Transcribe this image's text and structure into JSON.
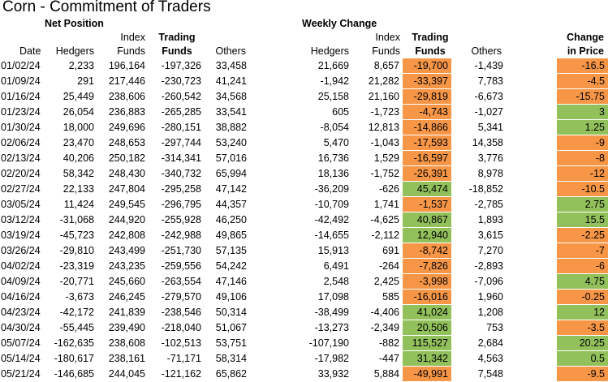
{
  "title": "Corn - Commitment of Traders",
  "sections": {
    "net_position": "Net Position",
    "weekly_change": "Weekly Change"
  },
  "headers": {
    "date": "Date",
    "net_hedgers": "Hedgers",
    "net_index": [
      "Index",
      "Funds"
    ],
    "net_trading": [
      "Trading",
      "Funds"
    ],
    "net_others": "Others",
    "chg_hedgers": "Hedgers",
    "chg_index": [
      "Index",
      "Funds"
    ],
    "chg_trading": [
      "Trading",
      "Funds"
    ],
    "chg_others": "Others",
    "price": [
      "Change",
      "in Price"
    ]
  },
  "colors": {
    "negative": "#f79646",
    "positive": "#92c15b"
  },
  "rows": [
    {
      "date": "01/02/24",
      "nh": "2,233",
      "ni": "196,164",
      "nt": "-197,326",
      "no": "33,458",
      "ch": "21,669",
      "ci": "8,657",
      "ct": "-19,700",
      "co": "-1,439",
      "p": "-16.5",
      "tc": "orange",
      "pc": "orange"
    },
    {
      "date": "01/09/24",
      "nh": "291",
      "ni": "217,446",
      "nt": "-230,723",
      "no": "41,241",
      "ch": "-1,942",
      "ci": "21,282",
      "ct": "-33,397",
      "co": "7,783",
      "p": "-4.5",
      "tc": "orange",
      "pc": "orange"
    },
    {
      "date": "01/16/24",
      "nh": "25,449",
      "ni": "238,606",
      "nt": "-260,542",
      "no": "34,568",
      "ch": "25,158",
      "ci": "21,160",
      "ct": "-29,819",
      "co": "-6,673",
      "p": "-15.75",
      "tc": "orange",
      "pc": "orange"
    },
    {
      "date": "01/23/24",
      "nh": "26,054",
      "ni": "236,883",
      "nt": "-265,285",
      "no": "33,541",
      "ch": "605",
      "ci": "-1,723",
      "ct": "-4,743",
      "co": "-1,027",
      "p": "3",
      "tc": "orange",
      "pc": "green"
    },
    {
      "date": "01/30/24",
      "nh": "18,000",
      "ni": "249,696",
      "nt": "-280,151",
      "no": "38,882",
      "ch": "-8,054",
      "ci": "12,813",
      "ct": "-14,866",
      "co": "5,341",
      "p": "1.25",
      "tc": "orange",
      "pc": "green"
    },
    {
      "date": "02/06/24",
      "nh": "23,470",
      "ni": "248,653",
      "nt": "-297,744",
      "no": "53,240",
      "ch": "5,470",
      "ci": "-1,043",
      "ct": "-17,593",
      "co": "14,358",
      "p": "-9",
      "tc": "orange",
      "pc": "orange"
    },
    {
      "date": "02/13/24",
      "nh": "40,206",
      "ni": "250,182",
      "nt": "-314,341",
      "no": "57,016",
      "ch": "16,736",
      "ci": "1,529",
      "ct": "-16,597",
      "co": "3,776",
      "p": "-8",
      "tc": "orange",
      "pc": "orange"
    },
    {
      "date": "02/20/24",
      "nh": "58,342",
      "ni": "248,430",
      "nt": "-340,732",
      "no": "65,994",
      "ch": "18,136",
      "ci": "-1,752",
      "ct": "-26,391",
      "co": "8,978",
      "p": "-12",
      "tc": "orange",
      "pc": "orange"
    },
    {
      "date": "02/27/24",
      "nh": "22,133",
      "ni": "247,804",
      "nt": "-295,258",
      "no": "47,142",
      "ch": "-36,209",
      "ci": "-626",
      "ct": "45,474",
      "co": "-18,852",
      "p": "-10.5",
      "tc": "green",
      "pc": "orange"
    },
    {
      "date": "03/05/24",
      "nh": "11,424",
      "ni": "249,545",
      "nt": "-296,795",
      "no": "44,357",
      "ch": "-10,709",
      "ci": "1,741",
      "ct": "-1,537",
      "co": "-2,785",
      "p": "2.75",
      "tc": "orange",
      "pc": "green"
    },
    {
      "date": "03/12/24",
      "nh": "-31,068",
      "ni": "244,920",
      "nt": "-255,928",
      "no": "46,250",
      "ch": "-42,492",
      "ci": "-4,625",
      "ct": "40,867",
      "co": "1,893",
      "p": "15.5",
      "tc": "green",
      "pc": "green"
    },
    {
      "date": "03/19/24",
      "nh": "-45,723",
      "ni": "242,808",
      "nt": "-242,988",
      "no": "49,865",
      "ch": "-14,655",
      "ci": "-2,112",
      "ct": "12,940",
      "co": "3,615",
      "p": "-2.25",
      "tc": "green",
      "pc": "orange"
    },
    {
      "date": "03/26/24",
      "nh": "-29,810",
      "ni": "243,499",
      "nt": "-251,730",
      "no": "57,135",
      "ch": "15,913",
      "ci": "691",
      "ct": "-8,742",
      "co": "7,270",
      "p": "-7",
      "tc": "orange",
      "pc": "orange"
    },
    {
      "date": "04/02/24",
      "nh": "-23,319",
      "ni": "243,235",
      "nt": "-259,556",
      "no": "54,242",
      "ch": "6,491",
      "ci": "-264",
      "ct": "-7,826",
      "co": "-2,893",
      "p": "-6",
      "tc": "orange",
      "pc": "orange"
    },
    {
      "date": "04/09/24",
      "nh": "-20,771",
      "ni": "245,660",
      "nt": "-263,554",
      "no": "47,146",
      "ch": "2,548",
      "ci": "2,425",
      "ct": "-3,998",
      "co": "-7,096",
      "p": "4.75",
      "tc": "orange",
      "pc": "green"
    },
    {
      "date": "04/16/24",
      "nh": "-3,673",
      "ni": "246,245",
      "nt": "-279,570",
      "no": "49,106",
      "ch": "17,098",
      "ci": "585",
      "ct": "-16,016",
      "co": "1,960",
      "p": "-0.25",
      "tc": "orange",
      "pc": "orange"
    },
    {
      "date": "04/23/24",
      "nh": "-42,172",
      "ni": "241,839",
      "nt": "-238,546",
      "no": "50,314",
      "ch": "-38,499",
      "ci": "-4,406",
      "ct": "41,024",
      "co": "1,208",
      "p": "12",
      "tc": "green",
      "pc": "green"
    },
    {
      "date": "04/30/24",
      "nh": "-55,445",
      "ni": "239,490",
      "nt": "-218,040",
      "no": "51,067",
      "ch": "-13,273",
      "ci": "-2,349",
      "ct": "20,506",
      "co": "753",
      "p": "-3.5",
      "tc": "green",
      "pc": "orange"
    },
    {
      "date": "05/07/24",
      "nh": "-162,635",
      "ni": "238,608",
      "nt": "-102,513",
      "no": "53,751",
      "ch": "-107,190",
      "ci": "-882",
      "ct": "115,527",
      "co": "2,684",
      "p": "20.25",
      "tc": "green",
      "pc": "green"
    },
    {
      "date": "05/14/24",
      "nh": "-180,617",
      "ni": "238,161",
      "nt": "-71,171",
      "no": "58,314",
      "ch": "-17,982",
      "ci": "-447",
      "ct": "31,342",
      "co": "4,563",
      "p": "0.5",
      "tc": "green",
      "pc": "green"
    },
    {
      "date": "05/21/24",
      "nh": "-146,685",
      "ni": "244,045",
      "nt": "-121,162",
      "no": "65,862",
      "ch": "33,932",
      "ci": "5,884",
      "ct": "-49,991",
      "co": "7,548",
      "p": "-9.5",
      "tc": "orange",
      "pc": "orange"
    }
  ]
}
